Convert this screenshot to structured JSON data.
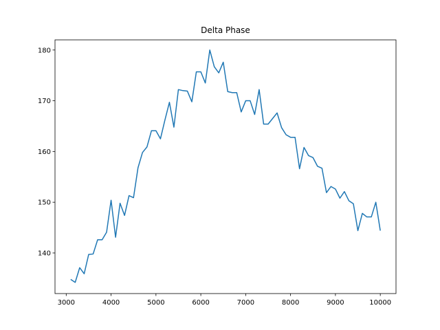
{
  "chart_data": {
    "type": "line",
    "title": "Delta Phase",
    "xlabel": "",
    "ylabel": "",
    "xlim": [
      2750,
      10350
    ],
    "ylim": [
      132,
      182
    ],
    "xticks": [
      3000,
      4000,
      5000,
      6000,
      7000,
      8000,
      9000,
      10000
    ],
    "yticks": [
      140,
      150,
      160,
      170,
      180
    ],
    "grid": false,
    "legend": "none",
    "series": [
      {
        "color": "#1f77b4",
        "x": [
          3100,
          3200,
          3300,
          3400,
          3500,
          3600,
          3700,
          3800,
          3900,
          4000,
          4100,
          4200,
          4300,
          4400,
          4500,
          4600,
          4700,
          4800,
          4900,
          5000,
          5100,
          5200,
          5300,
          5400,
          5500,
          5600,
          5700,
          5800,
          5900,
          6000,
          6100,
          6200,
          6300,
          6400,
          6500,
          6600,
          6700,
          6800,
          6900,
          7000,
          7100,
          7200,
          7300,
          7400,
          7500,
          7600,
          7700,
          7800,
          7900,
          8000,
          8100,
          8200,
          8300,
          8400,
          8500,
          8600,
          8700,
          8800,
          8900,
          9000,
          9100,
          9200,
          9300,
          9400,
          9500,
          9600,
          9700,
          9800,
          9900,
          10000
        ],
        "y": [
          134.8,
          134.2,
          137.1,
          135.9,
          139.7,
          139.8,
          142.6,
          142.6,
          144.1,
          150.4,
          143.1,
          149.8,
          147.4,
          151.3,
          150.9,
          156.8,
          159.8,
          160.9,
          164.1,
          164.1,
          162.5,
          166.2,
          169.7,
          164.8,
          172.2,
          172.0,
          171.9,
          169.8,
          175.7,
          175.7,
          173.5,
          180.0,
          176.7,
          175.5,
          177.6,
          171.8,
          171.6,
          171.6,
          167.8,
          170.0,
          170.0,
          167.3,
          172.2,
          165.4,
          165.4,
          166.5,
          167.6,
          164.7,
          163.3,
          162.8,
          162.8,
          156.6,
          160.8,
          159.2,
          158.8,
          157.1,
          156.7,
          151.9,
          153.1,
          152.6,
          150.8,
          152.1,
          150.3,
          149.7,
          144.4,
          147.8,
          147.1,
          147.1,
          150.0,
          144.4
        ]
      }
    ]
  }
}
